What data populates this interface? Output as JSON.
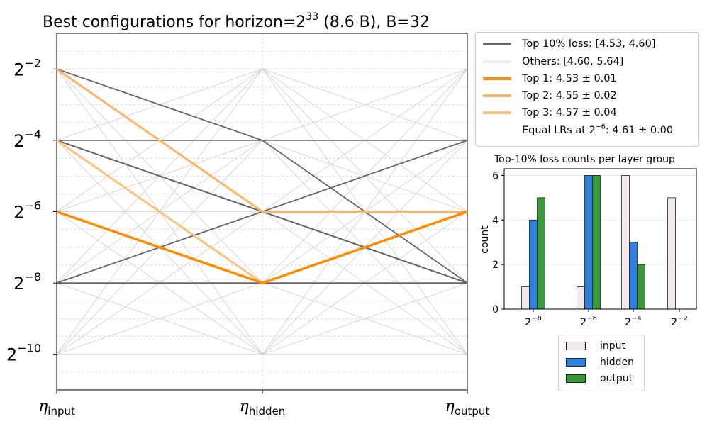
{
  "chart_data": [
    {
      "type": "parallel-coordinates",
      "title": "Best configurations for horizon=2^33 (8.6 B), B=32",
      "title_parts": {
        "pre": "Best configurations for horizon=2",
        "exp": "33",
        "post": " (8.6 B), B=32"
      },
      "axes": [
        "η_input",
        "η_hidden",
        "η_output"
      ],
      "axis_labels": [
        {
          "sym": "η",
          "sub": "input"
        },
        {
          "sym": "η",
          "sub": "hidden"
        },
        {
          "sym": "η",
          "sub": "output"
        }
      ],
      "y_scale": "log2",
      "y_range_exp": [
        -11,
        -1
      ],
      "y_ticks": [
        {
          "base": "2",
          "exp": "−2",
          "value": -2
        },
        {
          "base": "2",
          "exp": "−4",
          "value": -4
        },
        {
          "base": "2",
          "exp": "−6",
          "value": -6
        },
        {
          "base": "2",
          "exp": "−8",
          "value": -8
        },
        {
          "base": "2",
          "exp": "−10",
          "value": -10
        }
      ],
      "legend": {
        "top10": "Top 10% loss: [4.53, 4.60]",
        "others": "Others: [4.60, 5.64]",
        "top1": "Top 1: 4.53 ± 0.01",
        "top2": "Top 2: 4.55 ± 0.02",
        "top3": "Top 3: 4.57 ± 0.04",
        "equal_pre": "Equal LRs at 2",
        "equal_exp": "−6",
        "equal_post": ": 4.61 ± 0.00"
      },
      "series": {
        "top10": [
          [
            -2,
            -4,
            -8
          ],
          [
            -2,
            -6,
            -8
          ],
          [
            -4,
            -4,
            -4
          ],
          [
            -4,
            -6,
            -8
          ],
          [
            -4,
            -6,
            -8
          ],
          [
            -4,
            -6,
            -6
          ],
          [
            -4,
            -8,
            -6
          ],
          [
            -8,
            -6,
            -4
          ],
          [
            -8,
            -8,
            -8
          ]
        ],
        "top1": [
          -6,
          -8,
          -6
        ],
        "top2": [
          -2,
          -6,
          -6
        ],
        "top3": [
          -4,
          -8,
          -6
        ]
      },
      "colors": {
        "top10": "#666666",
        "others": "#d8d8d8",
        "top1": "#ff8c00",
        "top2": "#ffb366",
        "top3": "#ffc080"
      }
    },
    {
      "type": "bar",
      "title": "Top-10% loss counts per layer group",
      "ylabel": "count",
      "ylim": [
        0,
        6.3
      ],
      "y_ticks": [
        0,
        2,
        4,
        6
      ],
      "categories": [
        {
          "base": "2",
          "exp": "−8"
        },
        {
          "base": "2",
          "exp": "−6"
        },
        {
          "base": "2",
          "exp": "−4"
        },
        {
          "base": "2",
          "exp": "−2"
        }
      ],
      "series": [
        {
          "name": "input",
          "color": "#f2e8ec",
          "values": [
            1,
            1,
            6,
            5
          ]
        },
        {
          "name": "hidden",
          "color": "#2f7fdc",
          "values": [
            4,
            6,
            3,
            0
          ]
        },
        {
          "name": "output",
          "color": "#3a9a3a",
          "values": [
            5,
            6,
            2,
            0
          ]
        }
      ]
    }
  ]
}
